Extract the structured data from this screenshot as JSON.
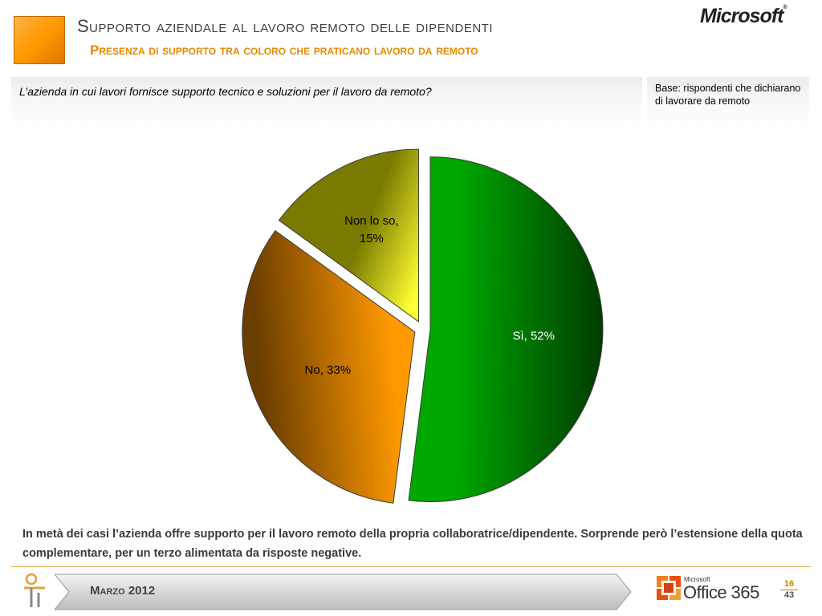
{
  "header": {
    "title": "Supporto aziendale al lavoro remoto delle dipendenti",
    "subtitle": "Presenza di supporto tra coloro che praticano lavoro da remoto",
    "logo_text": "Microsoft"
  },
  "question": {
    "text": "L’azienda in cui lavori fornisce supporto tecnico e soluzioni per il lavoro da remoto?",
    "base": "Base: rispondenti che dichiarano di lavorare da remoto"
  },
  "chart_data": {
    "type": "pie",
    "title": "",
    "slices": [
      {
        "label": "Sì",
        "value": 52,
        "display": "Sì, 52%",
        "color_dark": "#003c00",
        "color_light": "#00a800",
        "text_color": "#ffffff"
      },
      {
        "label": "No",
        "value": 33,
        "display": "No, 33%",
        "color_dark": "#6a3d00",
        "color_light": "#ff9900",
        "text_color": "#000000"
      },
      {
        "label": "Non lo so",
        "value": 15,
        "display": "Non lo so, 15%",
        "color_dark": "#7a7a00",
        "color_light": "#ffff33",
        "text_color": "#000000"
      }
    ],
    "legend": "none",
    "unit": "%"
  },
  "footnote": "In metà dei casi l’azienda offre supporto per il lavoro remoto della propria collaboratrice/dipendente. Sorprende però l’estensione della quota complementare, per un terzo alimentata da risposte negative.",
  "footer": {
    "date": "Marzo 2012",
    "office_small": "Microsoft",
    "office_name": "Office 365",
    "page_current": "16",
    "page_total": "43"
  }
}
